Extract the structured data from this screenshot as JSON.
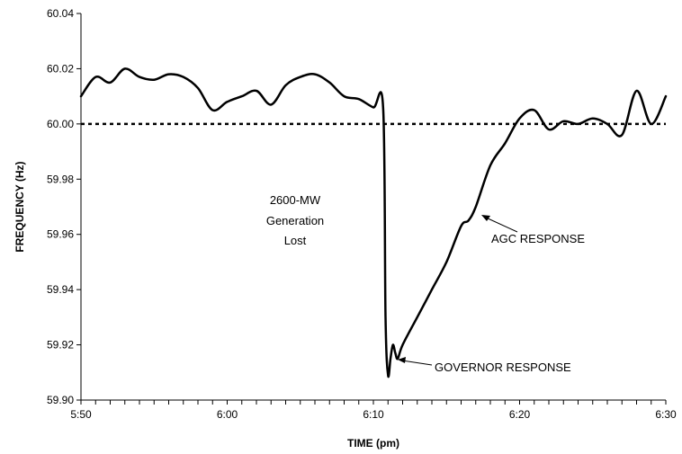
{
  "chart_data": {
    "type": "line",
    "title": "",
    "xlabel": "TIME (pm)",
    "ylabel": "FREQUENCY (Hz)",
    "x_unit": "time (pm)",
    "xlim": [
      "5:50",
      "6:30"
    ],
    "ylim": [
      59.9,
      60.04
    ],
    "x_ticks": [
      "5:50",
      "6:00",
      "6:10",
      "6:20",
      "6:30"
    ],
    "y_ticks": [
      "59.90",
      "59.92",
      "59.94",
      "59.96",
      "59.98",
      "60.00",
      "60.02",
      "60.04"
    ],
    "grid": false,
    "legend": "none",
    "reference_line": {
      "y": 60.0,
      "style": "dotted"
    },
    "series": [
      {
        "name": "",
        "color": "#000000",
        "points": [
          [
            "5:50:00",
            60.01
          ],
          [
            "5:51:00",
            60.017
          ],
          [
            "5:52:00",
            60.015
          ],
          [
            "5:53:00",
            60.02
          ],
          [
            "5:54:00",
            60.017
          ],
          [
            "5:55:00",
            60.016
          ],
          [
            "5:56:00",
            60.018
          ],
          [
            "5:57:00",
            60.017
          ],
          [
            "5:58:00",
            60.013
          ],
          [
            "5:59:00",
            60.005
          ],
          [
            "6:00:00",
            60.008
          ],
          [
            "6:01:00",
            60.01
          ],
          [
            "6:02:00",
            60.012
          ],
          [
            "6:03:00",
            60.007
          ],
          [
            "6:04:00",
            60.014
          ],
          [
            "6:05:00",
            60.017
          ],
          [
            "6:06:00",
            60.018
          ],
          [
            "6:07:00",
            60.015
          ],
          [
            "6:08:00",
            60.01
          ],
          [
            "6:09:00",
            60.009
          ],
          [
            "6:10:00",
            60.006
          ],
          [
            "6:10:40",
            60.006
          ],
          [
            "6:10:50",
            59.93
          ],
          [
            "6:11:00",
            59.909
          ],
          [
            "6:11:10",
            59.915
          ],
          [
            "6:11:20",
            59.92
          ],
          [
            "6:11:30",
            59.917
          ],
          [
            "6:11:40",
            59.915
          ],
          [
            "6:12:00",
            59.92
          ],
          [
            "6:13:00",
            59.93
          ],
          [
            "6:14:00",
            59.94
          ],
          [
            "6:15:00",
            59.95
          ],
          [
            "6:16:00",
            59.963
          ],
          [
            "6:16:30",
            59.965
          ],
          [
            "6:17:00",
            59.97
          ],
          [
            "6:18:00",
            59.985
          ],
          [
            "6:19:00",
            59.993
          ],
          [
            "6:20:00",
            60.002
          ],
          [
            "6:21:00",
            60.005
          ],
          [
            "6:22:00",
            59.998
          ],
          [
            "6:23:00",
            60.001
          ],
          [
            "6:24:00",
            60.0
          ],
          [
            "6:25:00",
            60.002
          ],
          [
            "6:26:00",
            60.0
          ],
          [
            "6:27:00",
            59.996
          ],
          [
            "6:28:00",
            60.012
          ],
          [
            "6:29:00",
            60.0
          ],
          [
            "6:30:00",
            60.01
          ]
        ]
      }
    ],
    "annotations": [
      {
        "text": [
          "2600-MW",
          "Generation",
          "Lost"
        ]
      },
      {
        "text": "AGC RESPONSE",
        "target": [
          "6:17:00",
          59.968
        ]
      },
      {
        "text": "GOVERNOR RESPONSE",
        "target": [
          "6:11:30",
          59.915
        ]
      }
    ]
  }
}
